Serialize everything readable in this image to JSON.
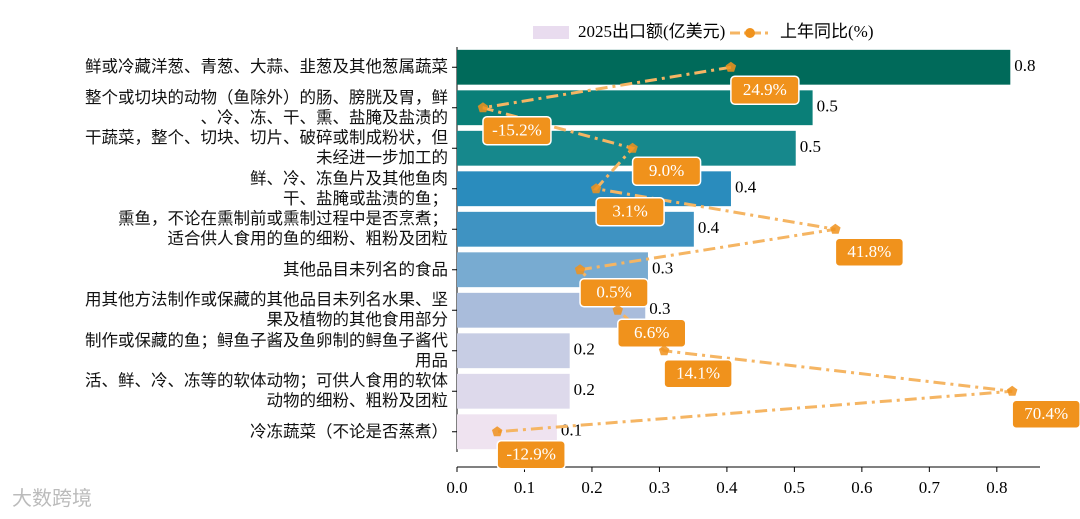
{
  "chart_data": {
    "type": "bar",
    "orientation": "horizontal",
    "categories": [
      "鲜或冷藏洋葱、青葱、大蒜、韭葱及其他葱属蔬菜",
      "整个或切块的动物（鱼除外）的肠、膀胱及胃，鲜\n、冷、冻、干、熏、盐腌及盐渍的",
      "干蔬菜，整个、切块、切片、破碎或制成粉状，但\n未经进一步加工的",
      "鲜、冷、冻鱼片及其他鱼肉\n干、盐腌或盐渍的鱼；",
      "熏鱼，不论在熏制前或熏制过程中是否烹煮；\n适合供人食用的鱼的细粉、粗粉及团粒",
      "其他品目未列名的食品",
      "用其他方法制作或保藏的其他品目未列名水果、坚\n果及植物的其他食用部分",
      "制作或保藏的鱼；鲟鱼子酱及鱼卵制的鲟鱼子酱代\n用品",
      "活、鲜、冷、冻等的软体动物；可供人食用的软体\n动物的细粉、粗粉及团粒",
      "冷冻蔬菜（不论是否蒸煮）"
    ],
    "series": [
      {
        "name": "2025出口额(亿美元)",
        "values": [
          0.82,
          0.527,
          0.502,
          0.406,
          0.351,
          0.283,
          0.279,
          0.167,
          0.167,
          0.148
        ],
        "value_labels": [
          "0.8",
          "0.5",
          "0.5",
          "0.4",
          "0.4",
          "0.3",
          "0.3",
          "0.2",
          "0.2",
          "0.1"
        ],
        "colors": [
          "#006a5a",
          "#0a7f78",
          "#16888c",
          "#2a8cbd",
          "#3f93c2",
          "#78abd1",
          "#a9bcdb",
          "#c7cde4",
          "#ddd9eb",
          "#efe3f0"
        ],
        "legend_color": "#e9dcef"
      },
      {
        "name": "上年同比(%)",
        "type": "line",
        "axis": "x2",
        "values": [
          24.9,
          -15.2,
          9.0,
          3.1,
          41.8,
          0.5,
          6.6,
          14.1,
          70.4,
          -12.9
        ],
        "value_labels": [
          "24.9%",
          "-15.2%",
          "9.0%",
          "3.1%",
          "41.8%",
          "0.5%",
          "6.6%",
          "14.1%",
          "70.4%",
          "-12.9%"
        ],
        "color": "#f5b563",
        "label_color": "#f0921c"
      }
    ],
    "xlim": [
      0,
      0.864
    ],
    "xticks": [
      {
        "value": 0,
        "label": "0.0"
      },
      {
        "value": 0.1,
        "label": "0.1"
      },
      {
        "value": 0.2,
        "label": "0.2"
      },
      {
        "value": 0.3,
        "label": "0.3"
      },
      {
        "value": 0.4,
        "label": "0.4"
      },
      {
        "value": 0.5,
        "label": "0.5"
      },
      {
        "value": 0.6,
        "label": "0.6"
      },
      {
        "value": 0.7,
        "label": "0.7"
      },
      {
        "value": 0.8,
        "label": "0.8"
      }
    ],
    "x2lim": [
      -19.4,
      74.9
    ],
    "legend": "top",
    "watermark": "大数跨境"
  }
}
